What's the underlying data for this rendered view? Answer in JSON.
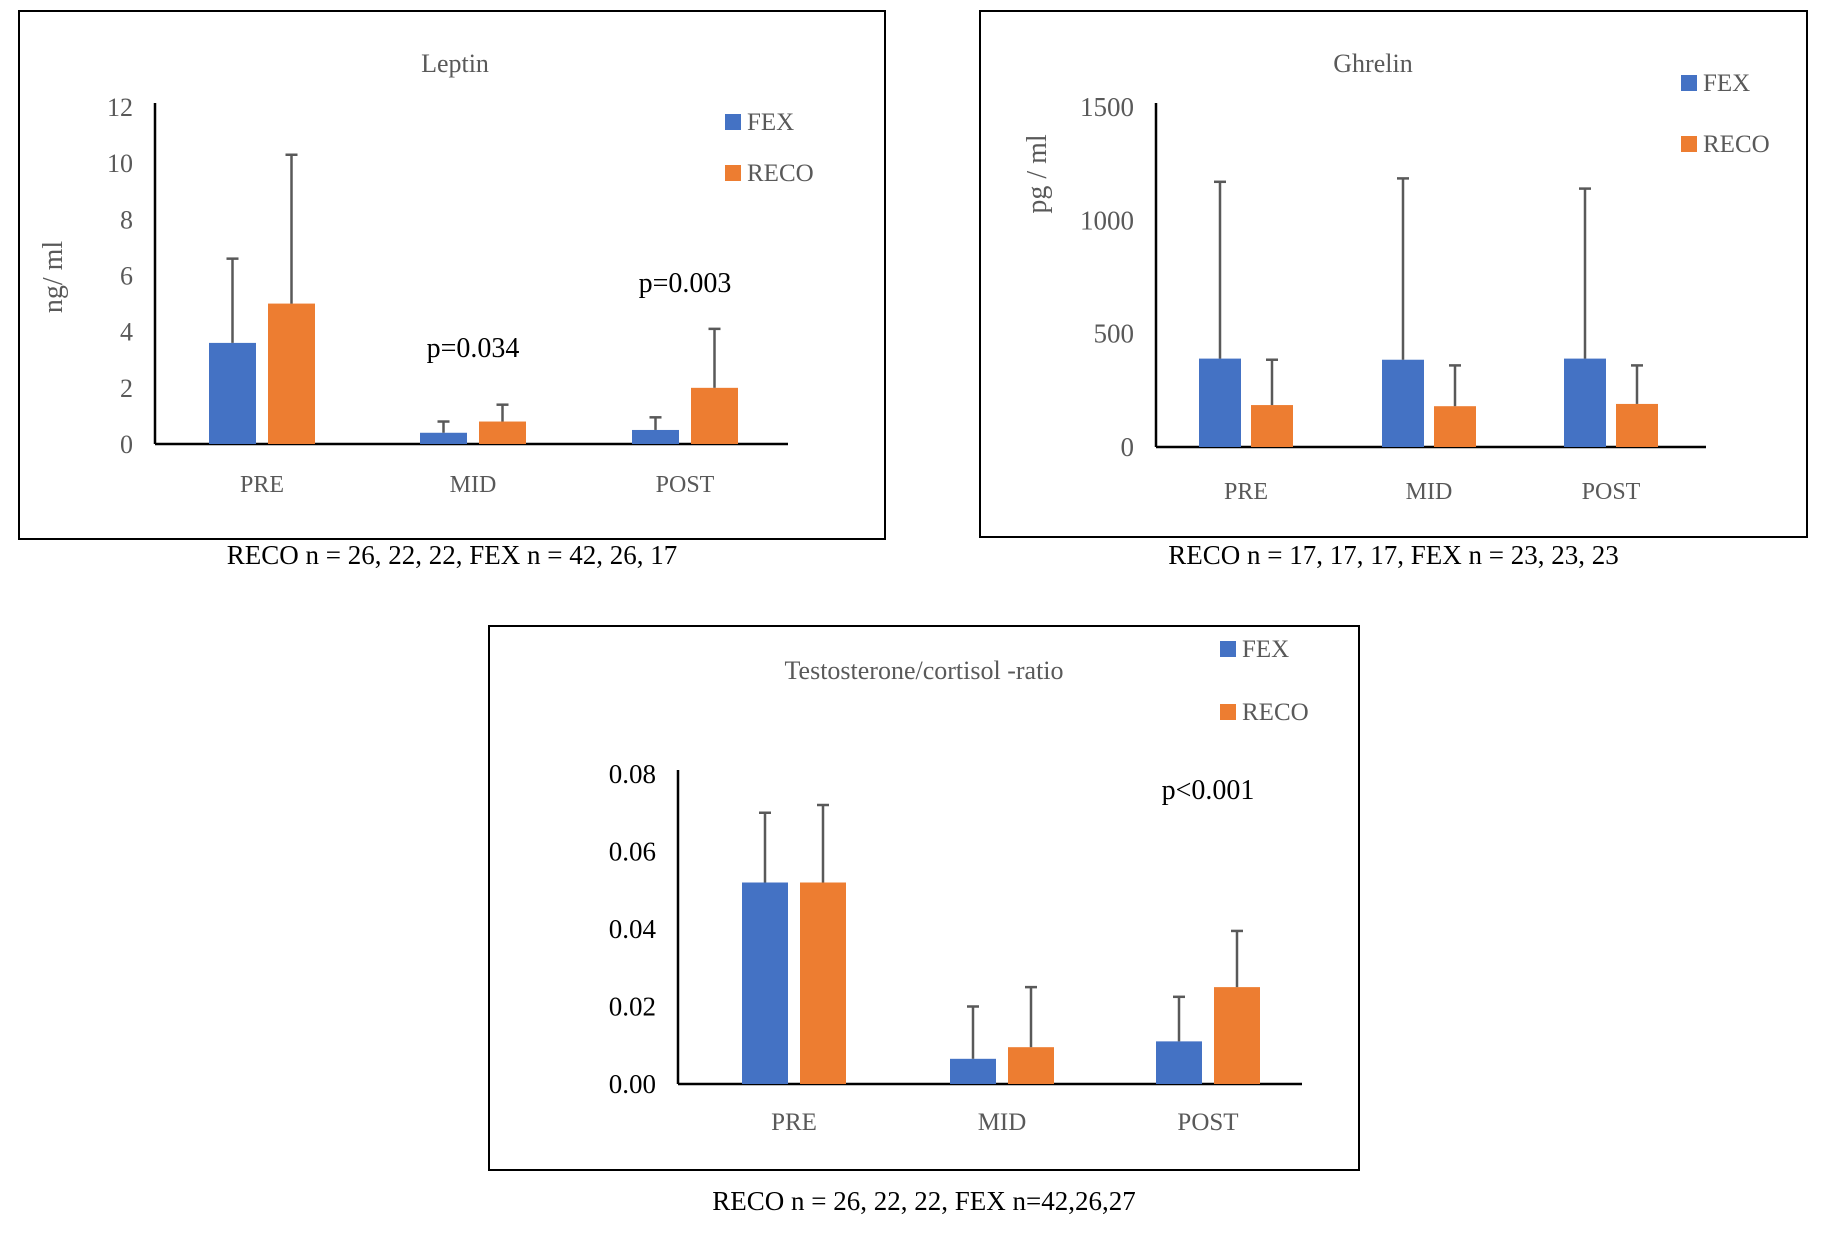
{
  "colors": {
    "fex": "#4472C4",
    "reco": "#ED7D31",
    "axis": "#000000",
    "error": "#595959",
    "label": "#595959"
  },
  "chart_data": [
    {
      "type": "bar",
      "title": "Leptin",
      "ylabel": "ng/ ml",
      "xlabel": "",
      "categories": [
        "PRE",
        "MID",
        "POST"
      ],
      "yticks": [
        "0",
        "2",
        "4",
        "6",
        "8",
        "10",
        "12"
      ],
      "ylim": [
        0,
        12
      ],
      "series": [
        {
          "name": "FEX",
          "values": [
            3.6,
            0.4,
            0.5
          ],
          "errors": [
            3.0,
            0.4,
            0.45
          ]
        },
        {
          "name": "RECO",
          "values": [
            5.0,
            0.8,
            2.0
          ],
          "errors": [
            5.3,
            0.6,
            2.1
          ]
        }
      ],
      "annotations": [
        {
          "text": "p=0.034",
          "category": 1
        },
        {
          "text": "p=0.003",
          "category": 2
        }
      ],
      "caption": "RECO n = 26, 22, 22, FEX n = 42, 26, 17"
    },
    {
      "type": "bar",
      "title": "Ghrelin",
      "ylabel": "pg / ml",
      "xlabel": "",
      "categories": [
        "PRE",
        "MID",
        "POST"
      ],
      "yticks": [
        "0",
        "500",
        "1000",
        "1500"
      ],
      "ylim": [
        0,
        1500
      ],
      "series": [
        {
          "name": "FEX",
          "values": [
            390,
            385,
            390
          ],
          "errors": [
            780,
            800,
            750
          ]
        },
        {
          "name": "RECO",
          "values": [
            185,
            180,
            190
          ],
          "errors": [
            200,
            180,
            170
          ]
        }
      ],
      "annotations": [],
      "caption": "RECO n = 17, 17, 17, FEX n = 23, 23, 23"
    },
    {
      "type": "bar",
      "title": "Testosterone/cortisol -ratio",
      "ylabel": "",
      "xlabel": "",
      "categories": [
        "PRE",
        "MID",
        "POST"
      ],
      "yticks": [
        "0.00",
        "0.02",
        "0.04",
        "0.06",
        "0.08"
      ],
      "ylim": [
        0,
        0.08
      ],
      "series": [
        {
          "name": "FEX",
          "values": [
            0.052,
            0.0065,
            0.011
          ],
          "errors": [
            0.018,
            0.0135,
            0.0115
          ]
        },
        {
          "name": "RECO",
          "values": [
            0.052,
            0.0095,
            0.025
          ],
          "errors": [
            0.02,
            0.0155,
            0.0145
          ]
        }
      ],
      "annotations": [
        {
          "text": "p<0.001",
          "category": 2
        }
      ],
      "caption": "RECO n = 26, 22, 22, FEX n=42,26,27"
    }
  ]
}
